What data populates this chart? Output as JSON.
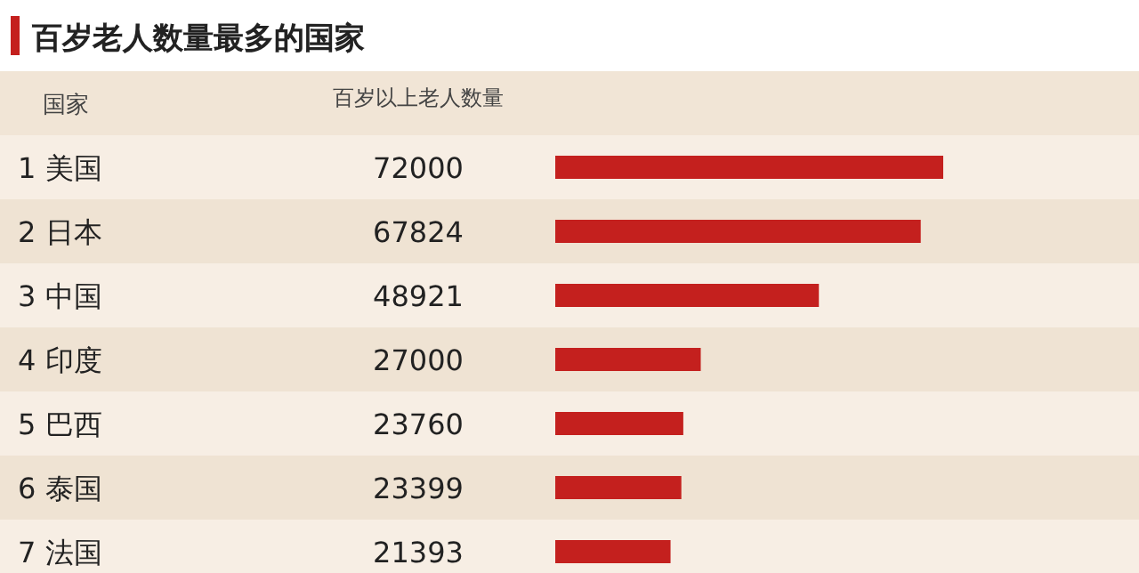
{
  "chart_data": {
    "type": "bar",
    "orientation": "horizontal",
    "title": "百岁老人数量最多的国家",
    "ylabel": "国家",
    "xlabel": "百岁以上老人数量",
    "categories": [
      "1 美国",
      "2 日本",
      "3 中国",
      "4 印度",
      "5 巴西",
      "6 泰国",
      "7 法国"
    ],
    "values": [
      72000,
      67824,
      48921,
      27000,
      23760,
      23399,
      21393
    ],
    "color": "#c4201e",
    "data_labels": true
  }
}
